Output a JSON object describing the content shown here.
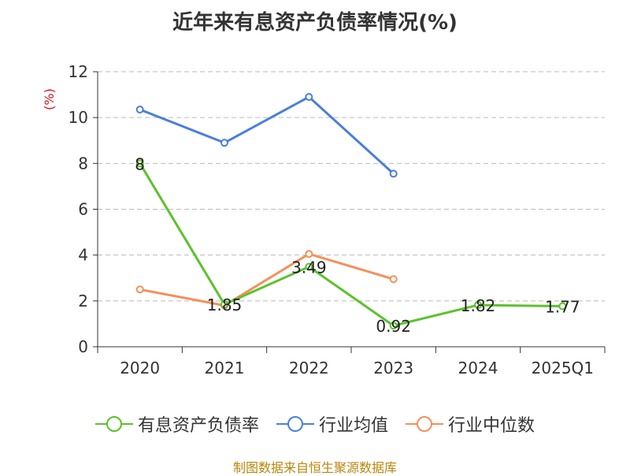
{
  "title": "近年来有息资产负债率情况(%)",
  "source": "制图数据来自恒生聚源数据库",
  "colors": {
    "series1": "#5cc22d",
    "series2": "#4a7fdc",
    "series3": "#f5905a",
    "axis": "#333333",
    "grid": "#bbbbbb",
    "unit": "#d9101e"
  },
  "chart_data": {
    "type": "line",
    "title": "近年来有息资产负债率情况(%)",
    "ylabel": "(%)",
    "ylim": [
      0,
      12
    ],
    "yticks": [
      0,
      2,
      4,
      6,
      8,
      10,
      12
    ],
    "categories": [
      "2020",
      "2021",
      "2022",
      "2023",
      "2024",
      "2025Q1"
    ],
    "grid": true,
    "legend_position": "bottom",
    "series": [
      {
        "name": "有息资产负债率",
        "values": [
          8,
          1.85,
          3.49,
          0.92,
          1.82,
          1.77
        ],
        "labels": [
          "8",
          "1.85",
          "3.49",
          "0.92",
          "1.82",
          "1.77"
        ]
      },
      {
        "name": "行业均值",
        "values": [
          10.35,
          8.9,
          10.9,
          7.55,
          null,
          null
        ]
      },
      {
        "name": "行业中位数",
        "values": [
          2.5,
          1.8,
          4.05,
          2.95,
          null,
          null
        ]
      }
    ]
  }
}
